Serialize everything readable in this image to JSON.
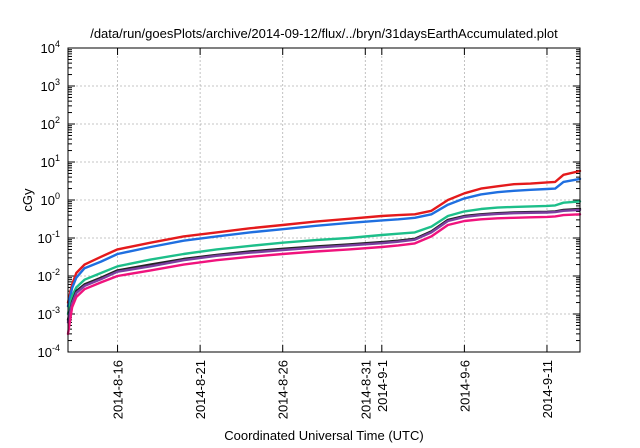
{
  "chart_data": {
    "type": "line",
    "title": "/data/run/goesPlots/archive/2014-09-12/flux/../bryn/31daysEarthAccumulated.plot",
    "xlabel": "Coordinated Universal Time (UTC)",
    "ylabel": "cGy",
    "yscale": "log",
    "ylim": [
      0.0001,
      10000
    ],
    "xlim": [
      "2014-08-13",
      "2014-09-13"
    ],
    "grid": true,
    "legend": "none",
    "yticks": [
      {
        "base": "10",
        "exp": "-4",
        "value": 0.0001
      },
      {
        "base": "10",
        "exp": "-3",
        "value": 0.001
      },
      {
        "base": "10",
        "exp": "-2",
        "value": 0.01
      },
      {
        "base": "10",
        "exp": "-1",
        "value": 0.1
      },
      {
        "base": "10",
        "exp": "0",
        "value": 1
      },
      {
        "base": "10",
        "exp": "1",
        "value": 10
      },
      {
        "base": "10",
        "exp": "2",
        "value": 100
      },
      {
        "base": "10",
        "exp": "3",
        "value": 1000
      },
      {
        "base": "10",
        "exp": "4",
        "value": 10000
      }
    ],
    "xticks": [
      {
        "label": "2014-8-16",
        "date": "2014-08-16"
      },
      {
        "label": "2014-8-21",
        "date": "2014-08-21"
      },
      {
        "label": "2014-8-26",
        "date": "2014-08-26"
      },
      {
        "label": "2014-8-31",
        "date": "2014-08-31"
      },
      {
        "label": "2014-9-1",
        "date": "2014-09-01"
      },
      {
        "label": "2014-9-6",
        "date": "2014-09-06"
      },
      {
        "label": "2014-9-11",
        "date": "2014-09-11"
      }
    ],
    "x": [
      "2014-08-13",
      "2014-08-13T06:00",
      "2014-08-13T12:00",
      "2014-08-14",
      "2014-08-15",
      "2014-08-16",
      "2014-08-18",
      "2014-08-20",
      "2014-08-22",
      "2014-08-24",
      "2014-08-26",
      "2014-08-28",
      "2014-08-30",
      "2014-09-01",
      "2014-09-02",
      "2014-09-03",
      "2014-09-04",
      "2014-09-05",
      "2014-09-06",
      "2014-09-07",
      "2014-09-08",
      "2014-09-09",
      "2014-09-10",
      "2014-09-11",
      "2014-09-11T12:00",
      "2014-09-12",
      "2014-09-13"
    ],
    "series": [
      {
        "color": "#e41a1c",
        "values": [
          0.002,
          0.006,
          0.012,
          0.02,
          0.032,
          0.05,
          0.075,
          0.11,
          0.14,
          0.18,
          0.22,
          0.27,
          0.32,
          0.38,
          0.4,
          0.42,
          0.52,
          1.0,
          1.5,
          2.0,
          2.3,
          2.6,
          2.7,
          2.9,
          3.0,
          4.6,
          5.8
        ]
      },
      {
        "color": "#1f6fe0",
        "values": [
          0.0016,
          0.0048,
          0.009,
          0.016,
          0.024,
          0.038,
          0.058,
          0.085,
          0.11,
          0.14,
          0.17,
          0.21,
          0.25,
          0.29,
          0.31,
          0.34,
          0.42,
          0.75,
          1.1,
          1.4,
          1.6,
          1.75,
          1.85,
          1.95,
          2.0,
          3.0,
          3.6
        ]
      },
      {
        "color": "#1dbf8a",
        "values": [
          0.001,
          0.003,
          0.005,
          0.008,
          0.012,
          0.018,
          0.027,
          0.038,
          0.05,
          0.062,
          0.075,
          0.088,
          0.1,
          0.12,
          0.13,
          0.14,
          0.2,
          0.38,
          0.5,
          0.58,
          0.63,
          0.66,
          0.68,
          0.7,
          0.72,
          0.85,
          0.92
        ]
      },
      {
        "color": "#222222",
        "values": [
          0.0007,
          0.0021,
          0.004,
          0.006,
          0.009,
          0.014,
          0.02,
          0.028,
          0.036,
          0.044,
          0.052,
          0.06,
          0.068,
          0.078,
          0.085,
          0.095,
          0.15,
          0.3,
          0.38,
          0.42,
          0.45,
          0.47,
          0.48,
          0.49,
          0.5,
          0.55,
          0.58
        ]
      },
      {
        "color": "#7b3fa0",
        "values": [
          0.0006,
          0.0019,
          0.0036,
          0.0055,
          0.0083,
          0.013,
          0.018,
          0.026,
          0.034,
          0.041,
          0.048,
          0.056,
          0.064,
          0.073,
          0.08,
          0.09,
          0.14,
          0.28,
          0.36,
          0.4,
          0.43,
          0.45,
          0.46,
          0.47,
          0.48,
          0.52,
          0.55
        ]
      },
      {
        "color": "#f0137d",
        "values": [
          0.0003,
          0.0015,
          0.0028,
          0.0045,
          0.0068,
          0.01,
          0.014,
          0.02,
          0.026,
          0.032,
          0.038,
          0.044,
          0.05,
          0.058,
          0.064,
          0.072,
          0.11,
          0.22,
          0.28,
          0.31,
          0.33,
          0.34,
          0.35,
          0.36,
          0.37,
          0.4,
          0.42
        ]
      }
    ]
  }
}
